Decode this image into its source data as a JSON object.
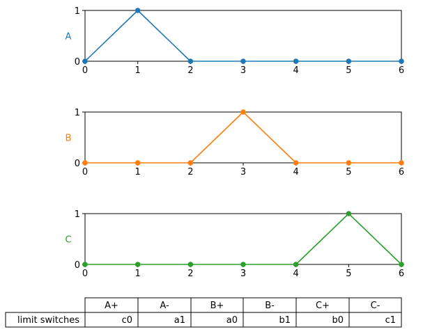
{
  "chart_data": [
    {
      "type": "line",
      "x": [
        0,
        1,
        2,
        3,
        4,
        5,
        6
      ],
      "series": [
        {
          "name": "A",
          "values": [
            0,
            1,
            0,
            0,
            0,
            0,
            0
          ],
          "color": "#1f77b4"
        }
      ],
      "ylabel": "A",
      "xlim": [
        0,
        6
      ],
      "ylim": [
        0,
        1
      ],
      "xticks": [
        "0",
        "1",
        "2",
        "3",
        "4",
        "5",
        "6"
      ],
      "yticks": [
        "0",
        "1"
      ],
      "grid": false
    },
    {
      "type": "line",
      "x": [
        0,
        1,
        2,
        3,
        4,
        5,
        6
      ],
      "series": [
        {
          "name": "B",
          "values": [
            0,
            0,
            0,
            1,
            0,
            0,
            0
          ],
          "color": "#ff7f0e"
        }
      ],
      "ylabel": "B",
      "xlim": [
        0,
        6
      ],
      "ylim": [
        0,
        1
      ],
      "xticks": [
        "0",
        "1",
        "2",
        "3",
        "4",
        "5",
        "6"
      ],
      "yticks": [
        "0",
        "1"
      ],
      "grid": false
    },
    {
      "type": "line",
      "x": [
        0,
        1,
        2,
        3,
        4,
        5,
        6
      ],
      "series": [
        {
          "name": "C",
          "values": [
            0,
            0,
            0,
            0,
            0,
            1,
            0
          ],
          "color": "#2ca02c"
        }
      ],
      "ylabel": "C",
      "xlim": [
        0,
        6
      ],
      "ylim": [
        0,
        1
      ],
      "xticks": [
        "0",
        "1",
        "2",
        "3",
        "4",
        "5",
        "6"
      ],
      "yticks": [
        "0",
        "1"
      ],
      "grid": false
    },
    {
      "type": "table",
      "columns": [
        "A+",
        "A-",
        "B+",
        "B-",
        "C+",
        "C-"
      ],
      "rows": [
        {
          "label": "limit switches",
          "cells": [
            "c0",
            "a1",
            "a0",
            "b1",
            "b0",
            "c1"
          ]
        }
      ]
    }
  ]
}
